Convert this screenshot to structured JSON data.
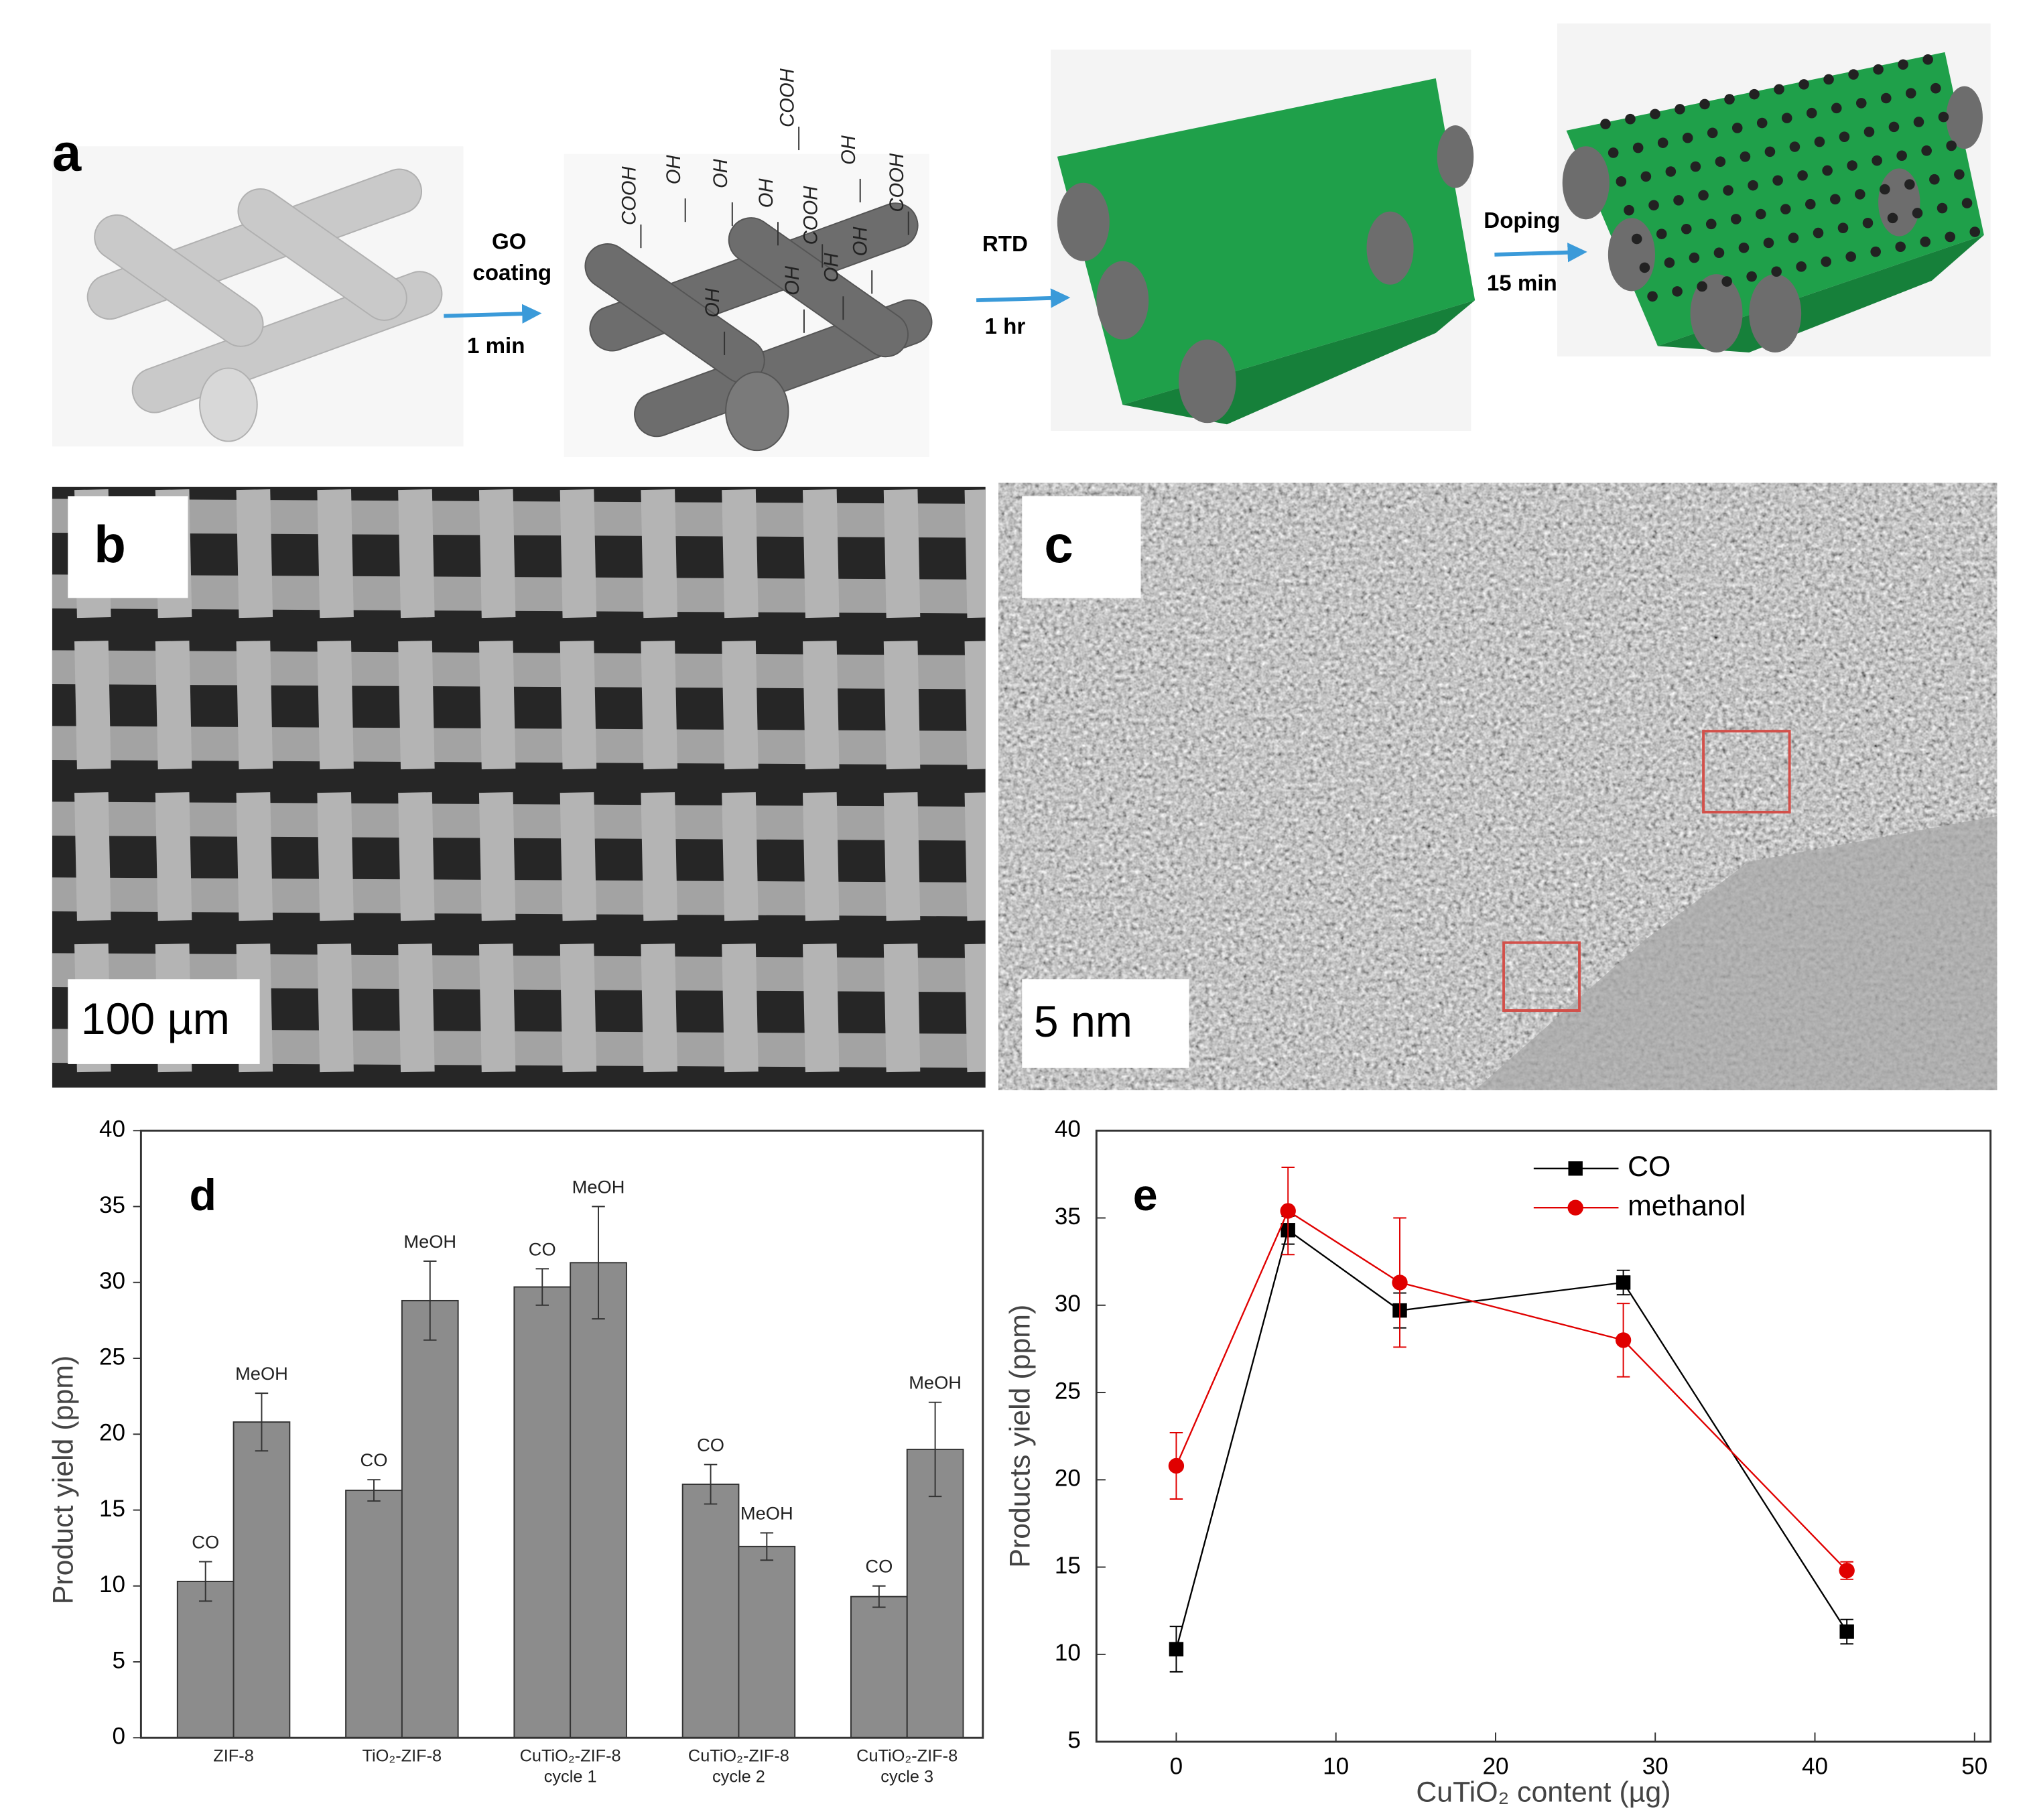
{
  "panel_a": {
    "label": "a",
    "steps": [
      {
        "label": "GO coating",
        "time": "1 min"
      },
      {
        "label": "RTD",
        "time": "1 hr"
      },
      {
        "label": "Doping",
        "time": "15 min"
      }
    ],
    "functional_groups": [
      "COOH",
      "OH",
      "OH",
      "COOH",
      "OH",
      "OH",
      "COOH",
      "COOH",
      "OH",
      "OH",
      "OH",
      "OH"
    ]
  },
  "panel_b": {
    "label": "b",
    "scale_bar": "100 µm"
  },
  "panel_c": {
    "label": "c",
    "scale_bar": "5 nm"
  },
  "chart_data": [
    {
      "type": "bar",
      "panel_label": "d",
      "y_label": "Product yield (ppm)",
      "categories": [
        "ZIF-8",
        "TiO₂-ZIF-8",
        "CuTiO₂-ZIF-8 cycle 1",
        "CuTiO₂-ZIF-8 cycle 2",
        "CuTiO₂-ZIF-8 cycle 3"
      ],
      "series": [
        {
          "name": "CO",
          "color": "#8c8c8c",
          "values": [
            10.3,
            16.3,
            29.7,
            16.7,
            9.3
          ],
          "errors": [
            1.3,
            0.7,
            1.2,
            1.3,
            0.7
          ]
        },
        {
          "name": "MeOH",
          "color": "#8c8c8c",
          "values": [
            20.8,
            28.8,
            31.3,
            12.6,
            19.0
          ],
          "errors": [
            1.9,
            2.6,
            3.7,
            0.9,
            3.1
          ]
        }
      ],
      "ylim": [
        0,
        40
      ],
      "yticks": [
        0,
        5,
        10,
        15,
        20,
        25,
        30,
        35,
        40
      ]
    },
    {
      "type": "line",
      "panel_label": "e",
      "x_label": "CuTiO₂ content (µg)",
      "y_label": "Products yield (ppm)",
      "x": [
        0,
        7,
        14,
        28,
        42
      ],
      "series": [
        {
          "name": "CO",
          "color": "#000000",
          "marker": "square",
          "values": [
            10.3,
            34.3,
            29.7,
            31.3,
            11.3
          ],
          "errors": [
            1.3,
            0.8,
            1.0,
            0.7,
            0.7
          ]
        },
        {
          "name": "methanol",
          "color": "#e00000",
          "marker": "circle",
          "values": [
            20.8,
            35.4,
            31.3,
            28.0,
            14.8
          ],
          "errors": [
            1.9,
            2.5,
            3.7,
            2.1,
            0.5
          ]
        }
      ],
      "xlim": [
        -5,
        51
      ],
      "xticks": [
        0,
        10,
        20,
        30,
        40,
        50
      ],
      "ylim": [
        5,
        40
      ],
      "yticks": [
        5,
        10,
        15,
        20,
        25,
        30,
        35,
        40
      ],
      "legend": "top"
    }
  ]
}
